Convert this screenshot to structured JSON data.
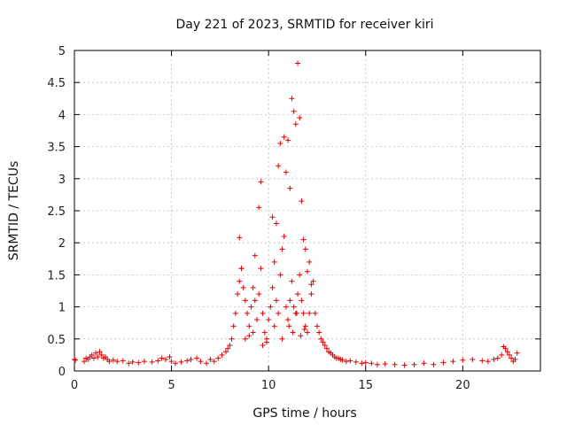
{
  "chart_data": {
    "type": "scatter",
    "title": "Day 221 of 2023, SRMTID for receiver kiri",
    "xlabel": "GPS time / hours",
    "ylabel": "SRMTID / TECUs",
    "xlim": [
      0,
      24
    ],
    "ylim": [
      0,
      5
    ],
    "x_ticks": [
      0,
      5,
      10,
      15,
      20
    ],
    "x_tick_labels": [
      "0",
      "5",
      "10",
      "15",
      "20"
    ],
    "y_ticks": [
      0,
      0.5,
      1,
      1.5,
      2,
      2.5,
      3,
      3.5,
      4,
      4.5,
      5
    ],
    "y_tick_labels": [
      "0",
      "0.5",
      "1",
      "1.5",
      "2",
      "2.5",
      "3",
      "3.5",
      "4",
      "4.5",
      "5"
    ],
    "grid": true,
    "marker": "+",
    "color": "#e00000",
    "series": [
      {
        "name": "SRMTID",
        "x": [
          0.0,
          0.05,
          0.5,
          0.6,
          0.7,
          0.8,
          0.9,
          1.0,
          1.1,
          1.2,
          1.3,
          1.4,
          1.5,
          1.6,
          1.7,
          1.8,
          2.0,
          2.2,
          2.5,
          2.8,
          3.0,
          3.3,
          3.6,
          4.0,
          4.3,
          4.5,
          4.7,
          4.9,
          5.0,
          5.2,
          5.5,
          5.8,
          6.0,
          6.3,
          6.5,
          6.8,
          7.0,
          7.2,
          7.4,
          7.6,
          7.8,
          7.9,
          8.0,
          8.1,
          8.2,
          8.3,
          8.4,
          8.5,
          8.6,
          8.7,
          8.8,
          8.9,
          9.0,
          9.1,
          9.2,
          9.3,
          9.4,
          9.5,
          9.6,
          9.7,
          9.8,
          9.9,
          10.0,
          10.1,
          10.2,
          10.3,
          10.4,
          10.5,
          10.6,
          10.7,
          10.8,
          10.9,
          11.0,
          11.1,
          11.2,
          11.3,
          11.4,
          11.5,
          11.6,
          11.7,
          11.8,
          11.9,
          12.0,
          12.1,
          12.2,
          12.3,
          12.4,
          12.5,
          12.6,
          12.7,
          12.8,
          12.9,
          13.0,
          13.1,
          13.2,
          13.3,
          13.4,
          13.5,
          13.6,
          13.7,
          13.8,
          14.0,
          14.2,
          14.5,
          14.8,
          15.0,
          15.3,
          15.6,
          16.0,
          16.5,
          17.0,
          17.5,
          18.0,
          18.5,
          19.0,
          19.5,
          20.0,
          20.5,
          21.0,
          21.3,
          21.6,
          21.8,
          22.0,
          22.1,
          22.2,
          22.3,
          22.4,
          22.5,
          22.6,
          22.7,
          22.8,
          8.5,
          8.6,
          9.3,
          9.5,
          9.6,
          10.2,
          10.4,
          10.5,
          10.6,
          10.8,
          10.9,
          11.0,
          11.1,
          11.2,
          11.3,
          11.4,
          11.5,
          11.6,
          11.7,
          11.8,
          11.9,
          12.0,
          12.1,
          12.2,
          8.8,
          9.0,
          9.2,
          9.7,
          9.9,
          10.3,
          10.7,
          11.05,
          11.25,
          11.45,
          11.65,
          11.85
        ],
        "y": [
          0.18,
          0.17,
          0.15,
          0.2,
          0.18,
          0.22,
          0.25,
          0.2,
          0.28,
          0.22,
          0.3,
          0.25,
          0.2,
          0.22,
          0.18,
          0.15,
          0.17,
          0.15,
          0.16,
          0.12,
          0.14,
          0.13,
          0.15,
          0.14,
          0.16,
          0.2,
          0.18,
          0.22,
          0.15,
          0.12,
          0.14,
          0.16,
          0.18,
          0.2,
          0.15,
          0.12,
          0.18,
          0.15,
          0.2,
          0.25,
          0.3,
          0.35,
          0.4,
          0.5,
          0.7,
          0.9,
          1.2,
          1.4,
          1.6,
          1.3,
          1.1,
          0.9,
          0.7,
          1.0,
          1.3,
          1.1,
          0.8,
          1.2,
          1.6,
          0.9,
          0.6,
          0.5,
          0.8,
          1.0,
          1.3,
          1.7,
          1.1,
          0.9,
          1.5,
          1.9,
          2.1,
          1.0,
          0.8,
          1.1,
          1.4,
          1.0,
          0.9,
          1.2,
          1.5,
          1.1,
          0.9,
          0.7,
          0.6,
          0.9,
          1.2,
          1.4,
          0.9,
          0.7,
          0.6,
          0.5,
          0.45,
          0.4,
          0.35,
          0.3,
          0.28,
          0.25,
          0.22,
          0.2,
          0.2,
          0.18,
          0.17,
          0.15,
          0.16,
          0.14,
          0.12,
          0.13,
          0.12,
          0.1,
          0.11,
          0.1,
          0.09,
          0.1,
          0.12,
          0.1,
          0.13,
          0.15,
          0.17,
          0.18,
          0.16,
          0.15,
          0.18,
          0.2,
          0.25,
          0.38,
          0.35,
          0.3,
          0.25,
          0.2,
          0.15,
          0.18,
          0.28,
          2.08,
          1.6,
          1.8,
          2.55,
          2.95,
          2.4,
          2.3,
          3.2,
          3.55,
          3.65,
          3.1,
          3.6,
          2.85,
          4.25,
          4.05,
          3.85,
          4.8,
          3.95,
          2.65,
          2.05,
          1.9,
          1.55,
          1.7,
          1.35,
          0.5,
          0.55,
          0.6,
          0.4,
          0.45,
          0.7,
          0.5,
          0.7,
          0.6,
          0.9,
          0.55,
          0.65
        ]
      }
    ]
  }
}
